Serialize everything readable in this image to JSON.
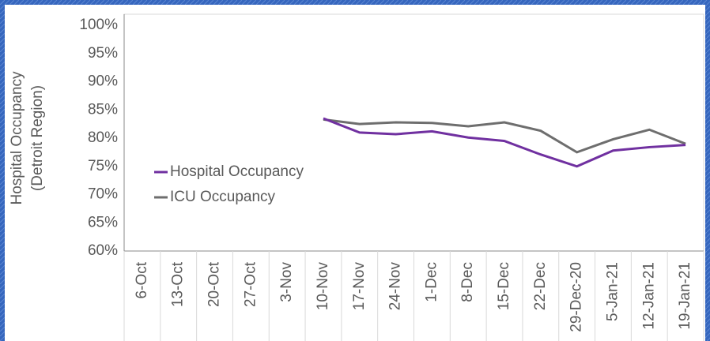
{
  "chart_data": {
    "type": "line",
    "y_axis_label": [
      "Hospital Occupancy",
      "(Detroit Region)"
    ],
    "categories": [
      "6-Oct",
      "13-Oct",
      "20-Oct",
      "27-Oct",
      "3-Nov",
      "10-Nov",
      "17-Nov",
      "24-Nov",
      "1-Dec",
      "8-Dec",
      "15-Dec",
      "22-Dec",
      "29-Dec-20",
      "5-Jan-21",
      "12-Jan-21",
      "19-Jan-21"
    ],
    "series": [
      {
        "name": "Hospital Occupancy",
        "color": "#7030a0",
        "values": [
          null,
          null,
          null,
          null,
          null,
          83.5,
          81.0,
          80.7,
          81.2,
          80.1,
          79.5,
          77.1,
          75.0,
          77.8,
          78.4,
          78.8
        ]
      },
      {
        "name": "ICU Occupancy",
        "color": "#6e6e6e",
        "values": [
          null,
          null,
          null,
          null,
          null,
          83.3,
          82.5,
          82.8,
          82.7,
          82.1,
          82.8,
          81.3,
          77.5,
          79.8,
          81.5,
          79.0
        ]
      }
    ],
    "ylim": [
      60,
      100
    ],
    "yticks": [
      {
        "value": 60,
        "label": "60%"
      },
      {
        "value": 65,
        "label": "65%"
      },
      {
        "value": 70,
        "label": "70%"
      },
      {
        "value": 75,
        "label": "75%"
      },
      {
        "value": 80,
        "label": "80%"
      },
      {
        "value": 85,
        "label": "85%"
      },
      {
        "value": 90,
        "label": "90%"
      },
      {
        "value": 95,
        "label": "95%"
      },
      {
        "value": 100,
        "label": "100%"
      }
    ],
    "legend": "left"
  }
}
